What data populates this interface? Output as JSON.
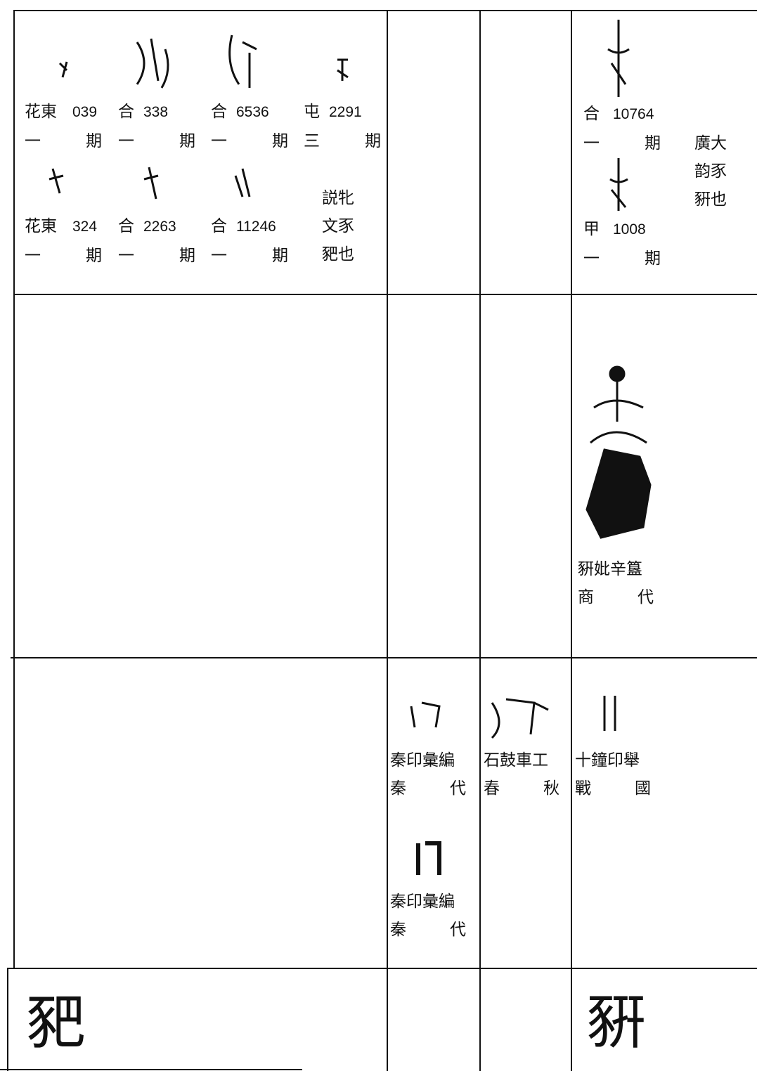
{
  "rows": [
    {
      "cells": [
        {
          "entries": [
            {
              "source": "花東",
              "number": "039",
              "period": "一 期"
            },
            {
              "source": "合",
              "number": "338",
              "period": "一 期"
            },
            {
              "source": "合",
              "number": "6536",
              "period": "一 期"
            },
            {
              "source": "屯",
              "number": "2291",
              "period": "三 期"
            },
            {
              "source": "花東",
              "number": "324",
              "period": "一 期"
            },
            {
              "source": "合",
              "number": "2263",
              "period": "一 期"
            },
            {
              "source": "合",
              "number": "11246",
              "period": "一 期"
            }
          ],
          "note": [
            "説牝",
            "文豕",
            "豝也"
          ]
        },
        {
          "entries": []
        },
        {
          "entries": []
        },
        {
          "entries": [
            {
              "source": "合",
              "number": "10764",
              "period": "一 期"
            },
            {
              "source": "甲",
              "number": "1008",
              "period": "一 期"
            }
          ],
          "note": [
            "廣大",
            "韵豕",
            "豣也"
          ]
        }
      ]
    },
    {
      "cells": [
        {
          "entries": []
        },
        {
          "entries": []
        },
        {
          "entries": []
        },
        {
          "entries": [
            {
              "source": "豣妣辛簋",
              "period": "商 代"
            }
          ]
        }
      ]
    },
    {
      "cells": [
        {
          "entries": []
        },
        {
          "entries": [
            {
              "source": "秦印彙編",
              "period": "秦 代"
            },
            {
              "source": "秦印彙編",
              "period": "秦 代"
            }
          ]
        },
        {
          "entries": [
            {
              "source": "石鼓車工",
              "period": "春 秋"
            }
          ]
        },
        {
          "entries": [
            {
              "source": "十鐘印舉",
              "period": "戰 國"
            }
          ]
        }
      ]
    },
    {
      "cells": [
        {
          "character": "豝"
        },
        {
          "entries": []
        },
        {
          "entries": []
        },
        {
          "character": "豣"
        }
      ]
    }
  ]
}
